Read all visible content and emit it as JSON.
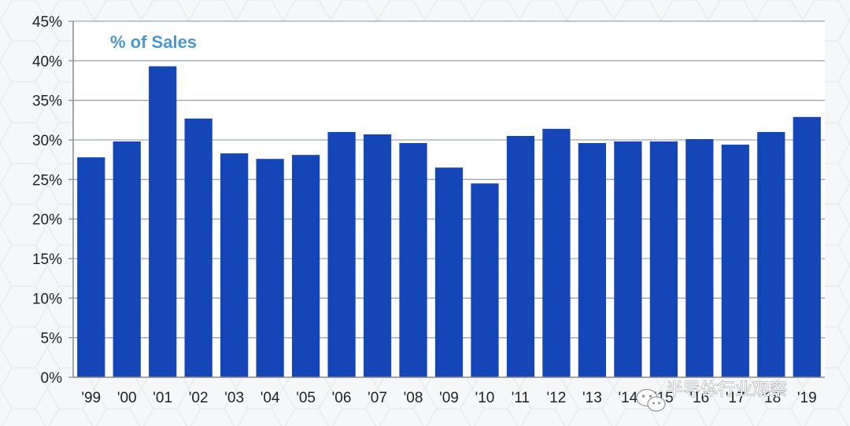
{
  "chart_data": {
    "type": "bar",
    "title": "% of Sales",
    "categories": [
      "'99",
      "'00",
      "'01",
      "'02",
      "'03",
      "'04",
      "'05",
      "'06",
      "'07",
      "'08",
      "'09",
      "'10",
      "'11",
      "'12",
      "'13",
      "'14",
      "'15",
      "'16",
      "'17",
      "'18",
      "'19"
    ],
    "values": [
      27.8,
      29.8,
      39.3,
      32.7,
      28.3,
      27.6,
      28.1,
      31.0,
      30.7,
      29.6,
      26.5,
      24.5,
      30.5,
      31.4,
      29.6,
      29.8,
      29.8,
      30.1,
      29.4,
      31.0,
      32.9
    ],
    "ylim": [
      0,
      45
    ],
    "yticks": [
      0,
      5,
      10,
      15,
      20,
      25,
      30,
      35,
      40,
      45
    ],
    "ytick_labels": [
      "0%",
      "5%",
      "10%",
      "15%",
      "20%",
      "25%",
      "30%",
      "35%",
      "40%",
      "45%"
    ],
    "xlabel": "",
    "ylabel": "",
    "grid": true,
    "colors": {
      "bar": "#1546b8",
      "grid": "#9aa6b8",
      "title": "#4a98cf",
      "axis": "#8a8a8a"
    }
  },
  "watermark": {
    "text": "半导体行业观察",
    "icon": "wechat-icon"
  }
}
